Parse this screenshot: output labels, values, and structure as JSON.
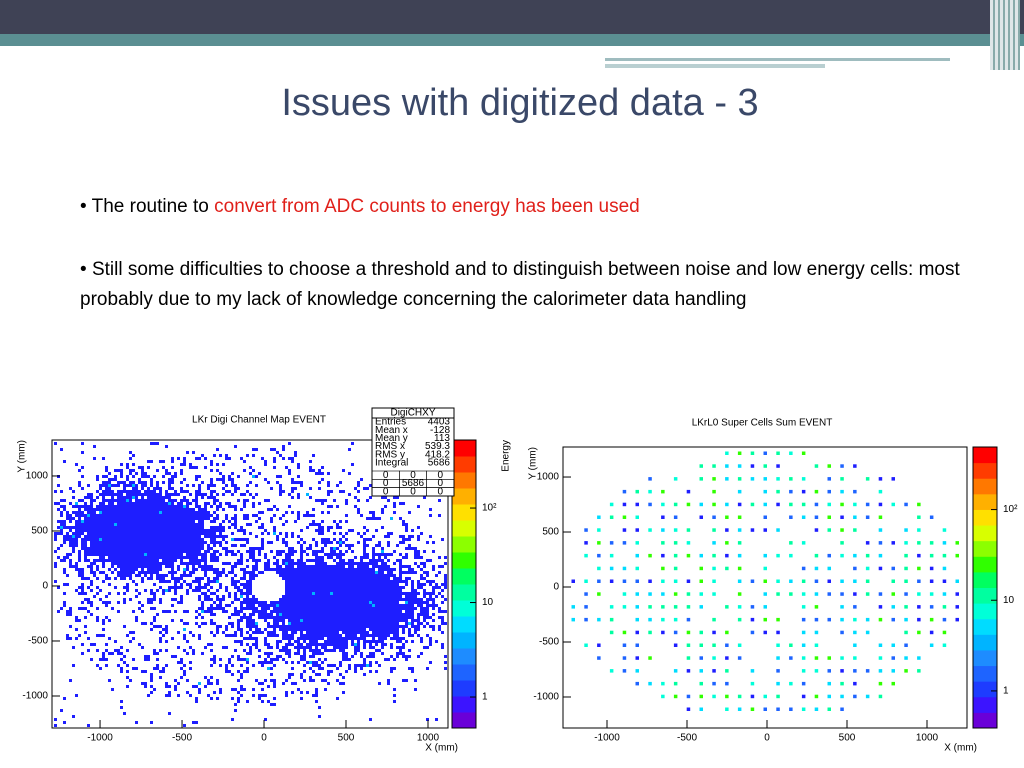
{
  "header": {
    "title": "Issues with digitized data - 3"
  },
  "bullets": [
    {
      "text": "The routine to ",
      "highlight": "convert from ADC counts to energy has been used"
    },
    {
      "text": "Still some difficulties to choose a threshold and to distinguish between noise and low energy cells: most probably due to my lack of knowledge concerning the calorimeter data handling"
    }
  ],
  "charts": [
    {
      "type": "hist2d",
      "title": "LKr Digi Channel Map EVENT",
      "xlabel": "X (mm)",
      "ylabel": "Y (mm)",
      "zlabel": "Energy",
      "xlim": [
        -1293,
        1122
      ],
      "ylim": [
        -1291,
        1327
      ],
      "xticks": [
        -1000,
        -500,
        0,
        500,
        1000
      ],
      "yticks": [
        -1000,
        -500,
        0,
        500,
        1000
      ],
      "zlim": [
        0.47,
        525
      ],
      "zticks": [
        1,
        10,
        {
          "value": 100,
          "label": "10²"
        }
      ],
      "log_z": true,
      "stats": {
        "title": "DigiCHXY",
        "rows": [
          [
            "Entries",
            4403
          ],
          [
            "Mean x",
            -128
          ],
          [
            "Mean y",
            113
          ],
          [
            "RMS x",
            539.3
          ],
          [
            "RMS y",
            418.2
          ],
          [
            "Integral",
            5686
          ]
        ],
        "grid": [
          [
            0,
            0,
            0
          ],
          [
            0,
            5686,
            0
          ],
          [
            0,
            0,
            0
          ]
        ]
      }
    },
    {
      "type": "hist2d",
      "title": "LKrL0 Super Cells Sum EVENT",
      "xlabel": "X (mm)",
      "ylabel": "Y (mm)",
      "xlim": [
        -1275,
        1250
      ],
      "ylim": [
        -1282,
        1273
      ],
      "xticks": [
        -1000,
        -500,
        0,
        500,
        1000
      ],
      "yticks": [
        -1000,
        -500,
        0,
        500,
        1000
      ],
      "zlim": [
        0.39,
        490
      ],
      "zticks": [
        1,
        10,
        {
          "value": 100,
          "label": "10²"
        }
      ],
      "log_z": true
    }
  ]
}
